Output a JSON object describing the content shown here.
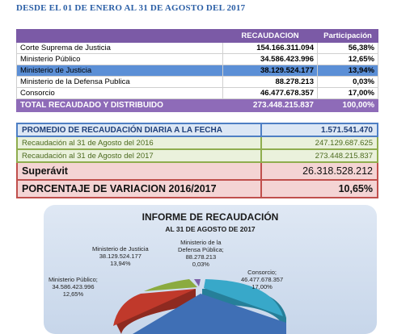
{
  "header": {
    "period": "DESDE EL 01 DE ENERO AL 31 DE AGOSTO DEL 2017"
  },
  "table1": {
    "col_recaudacion": "RECAUDACION",
    "col_participacion": "Participación",
    "rows": [
      {
        "name": "Corte Suprema de Justicia",
        "amount": "154.166.311.094",
        "pct": "56,38%"
      },
      {
        "name": "Ministerio Público",
        "amount": "34.586.423.996",
        "pct": "12,65%"
      },
      {
        "name": "Ministerio de Justicia",
        "amount": "38.129.524.177",
        "pct": "13,94%"
      },
      {
        "name": "Ministerio de la Defensa Publica",
        "amount": "88.278.213",
        "pct": "0,03%"
      },
      {
        "name": "Consorcio",
        "amount": "46.477.678.357",
        "pct": "17,00%"
      }
    ],
    "total": {
      "label": "TOTAL RECAUDADO Y DISTRIBUIDO",
      "amount": "273.448.215.837",
      "pct": "100,00%"
    }
  },
  "table2": {
    "promedio": {
      "label": "PROMEDIO DE RECAUDACIÓN DIARIA A LA FECHA",
      "value": "1.571.541.470"
    },
    "r2016": {
      "label": "Recaudación al 31 de Agosto del 2016",
      "value": "247.129.687.625"
    },
    "r2017": {
      "label": "Recaudación al 31 de Agosto del 2017",
      "value": "273.448.215.837"
    },
    "superavit": {
      "label": "Superávit",
      "value": "26.318.528.212"
    },
    "variacion": {
      "label": "PORCENTAJE DE VARIACION 2016/2017",
      "value": "10,65%"
    }
  },
  "chart": {
    "title": "INFORME DE RECAUDACIÓN",
    "subtitle": "AL 31 DE AGOSTO DE 2017",
    "colors": {
      "corte": "#3f6fb5",
      "publico": "#c0392b",
      "justicia": "#8bab3f",
      "defensa": "#7d5fa8",
      "consorcio": "#38a8c9"
    },
    "labels": {
      "justicia": {
        "name": "Ministerio de Justicia",
        "amount": "38.129.524.177",
        "pct": "13,94%"
      },
      "defensa": {
        "name1": "Ministerio de la",
        "name2": "Defensa Pública;",
        "amount": "88.278.213",
        "pct": "0,03%"
      },
      "publico": {
        "name": "Ministerio Público;",
        "amount": "34.586.423.996",
        "pct": "12,65%"
      },
      "consorcio": {
        "name": "Consorcio;",
        "amount": "46.477.678.357",
        "pct": "17,00%"
      }
    }
  }
}
